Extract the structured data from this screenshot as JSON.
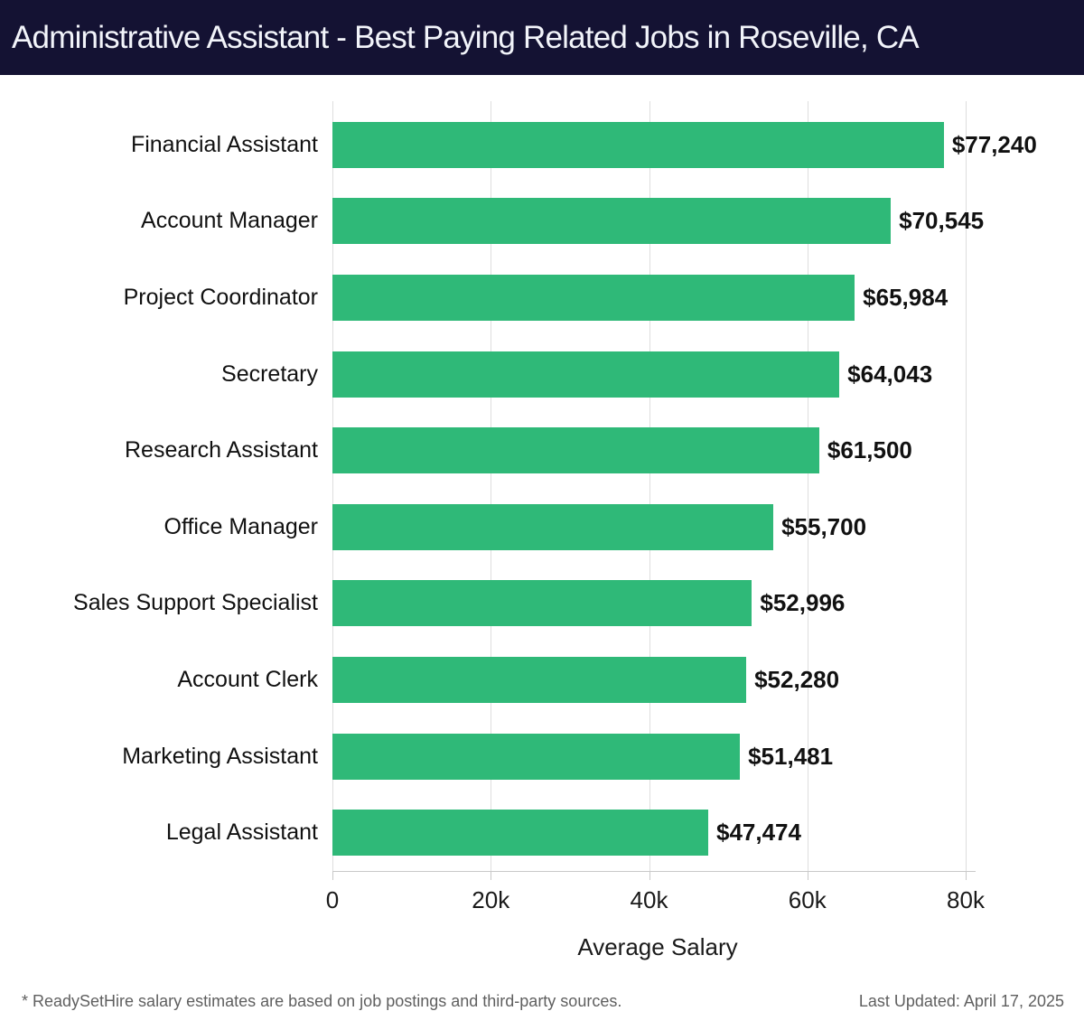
{
  "header": {
    "title": "Administrative Assistant - Best Paying Related Jobs in Roseville, CA",
    "bg_color": "#141233",
    "text_color": "#f2f4fa"
  },
  "chart_data": {
    "type": "bar",
    "orientation": "horizontal",
    "title": "Administrative Assistant - Best Paying Related Jobs in Roseville, CA",
    "categories": [
      "Financial Assistant",
      "Account Manager",
      "Project Coordinator",
      "Secretary",
      "Research Assistant",
      "Office Manager",
      "Sales Support Specialist",
      "Account Clerk",
      "Marketing Assistant",
      "Legal Assistant"
    ],
    "values": [
      77240,
      70545,
      65984,
      64043,
      61500,
      55700,
      52996,
      52280,
      51481,
      47474
    ],
    "value_labels": [
      "$77,240",
      "$70,545",
      "$65,984",
      "$64,043",
      "$61,500",
      "$55,700",
      "$52,996",
      "$52,280",
      "$51,481",
      "$47,474"
    ],
    "xlabel": "Average Salary",
    "ylabel": "",
    "xlim": [
      0,
      80000
    ],
    "x_ticks": [
      "0",
      "20k",
      "40k",
      "60k",
      "80k"
    ],
    "x_tick_values": [
      0,
      20000,
      40000,
      60000,
      80000
    ],
    "grid": true,
    "legend": "none",
    "bar_color": "#2fb978",
    "grid_color": "#dedede",
    "axis_color": "#c9c9c9"
  },
  "footer": {
    "source_note": "* ReadySetHire salary estimates are based on job postings and third-party sources.",
    "last_updated": "Last Updated: April 17, 2025"
  }
}
